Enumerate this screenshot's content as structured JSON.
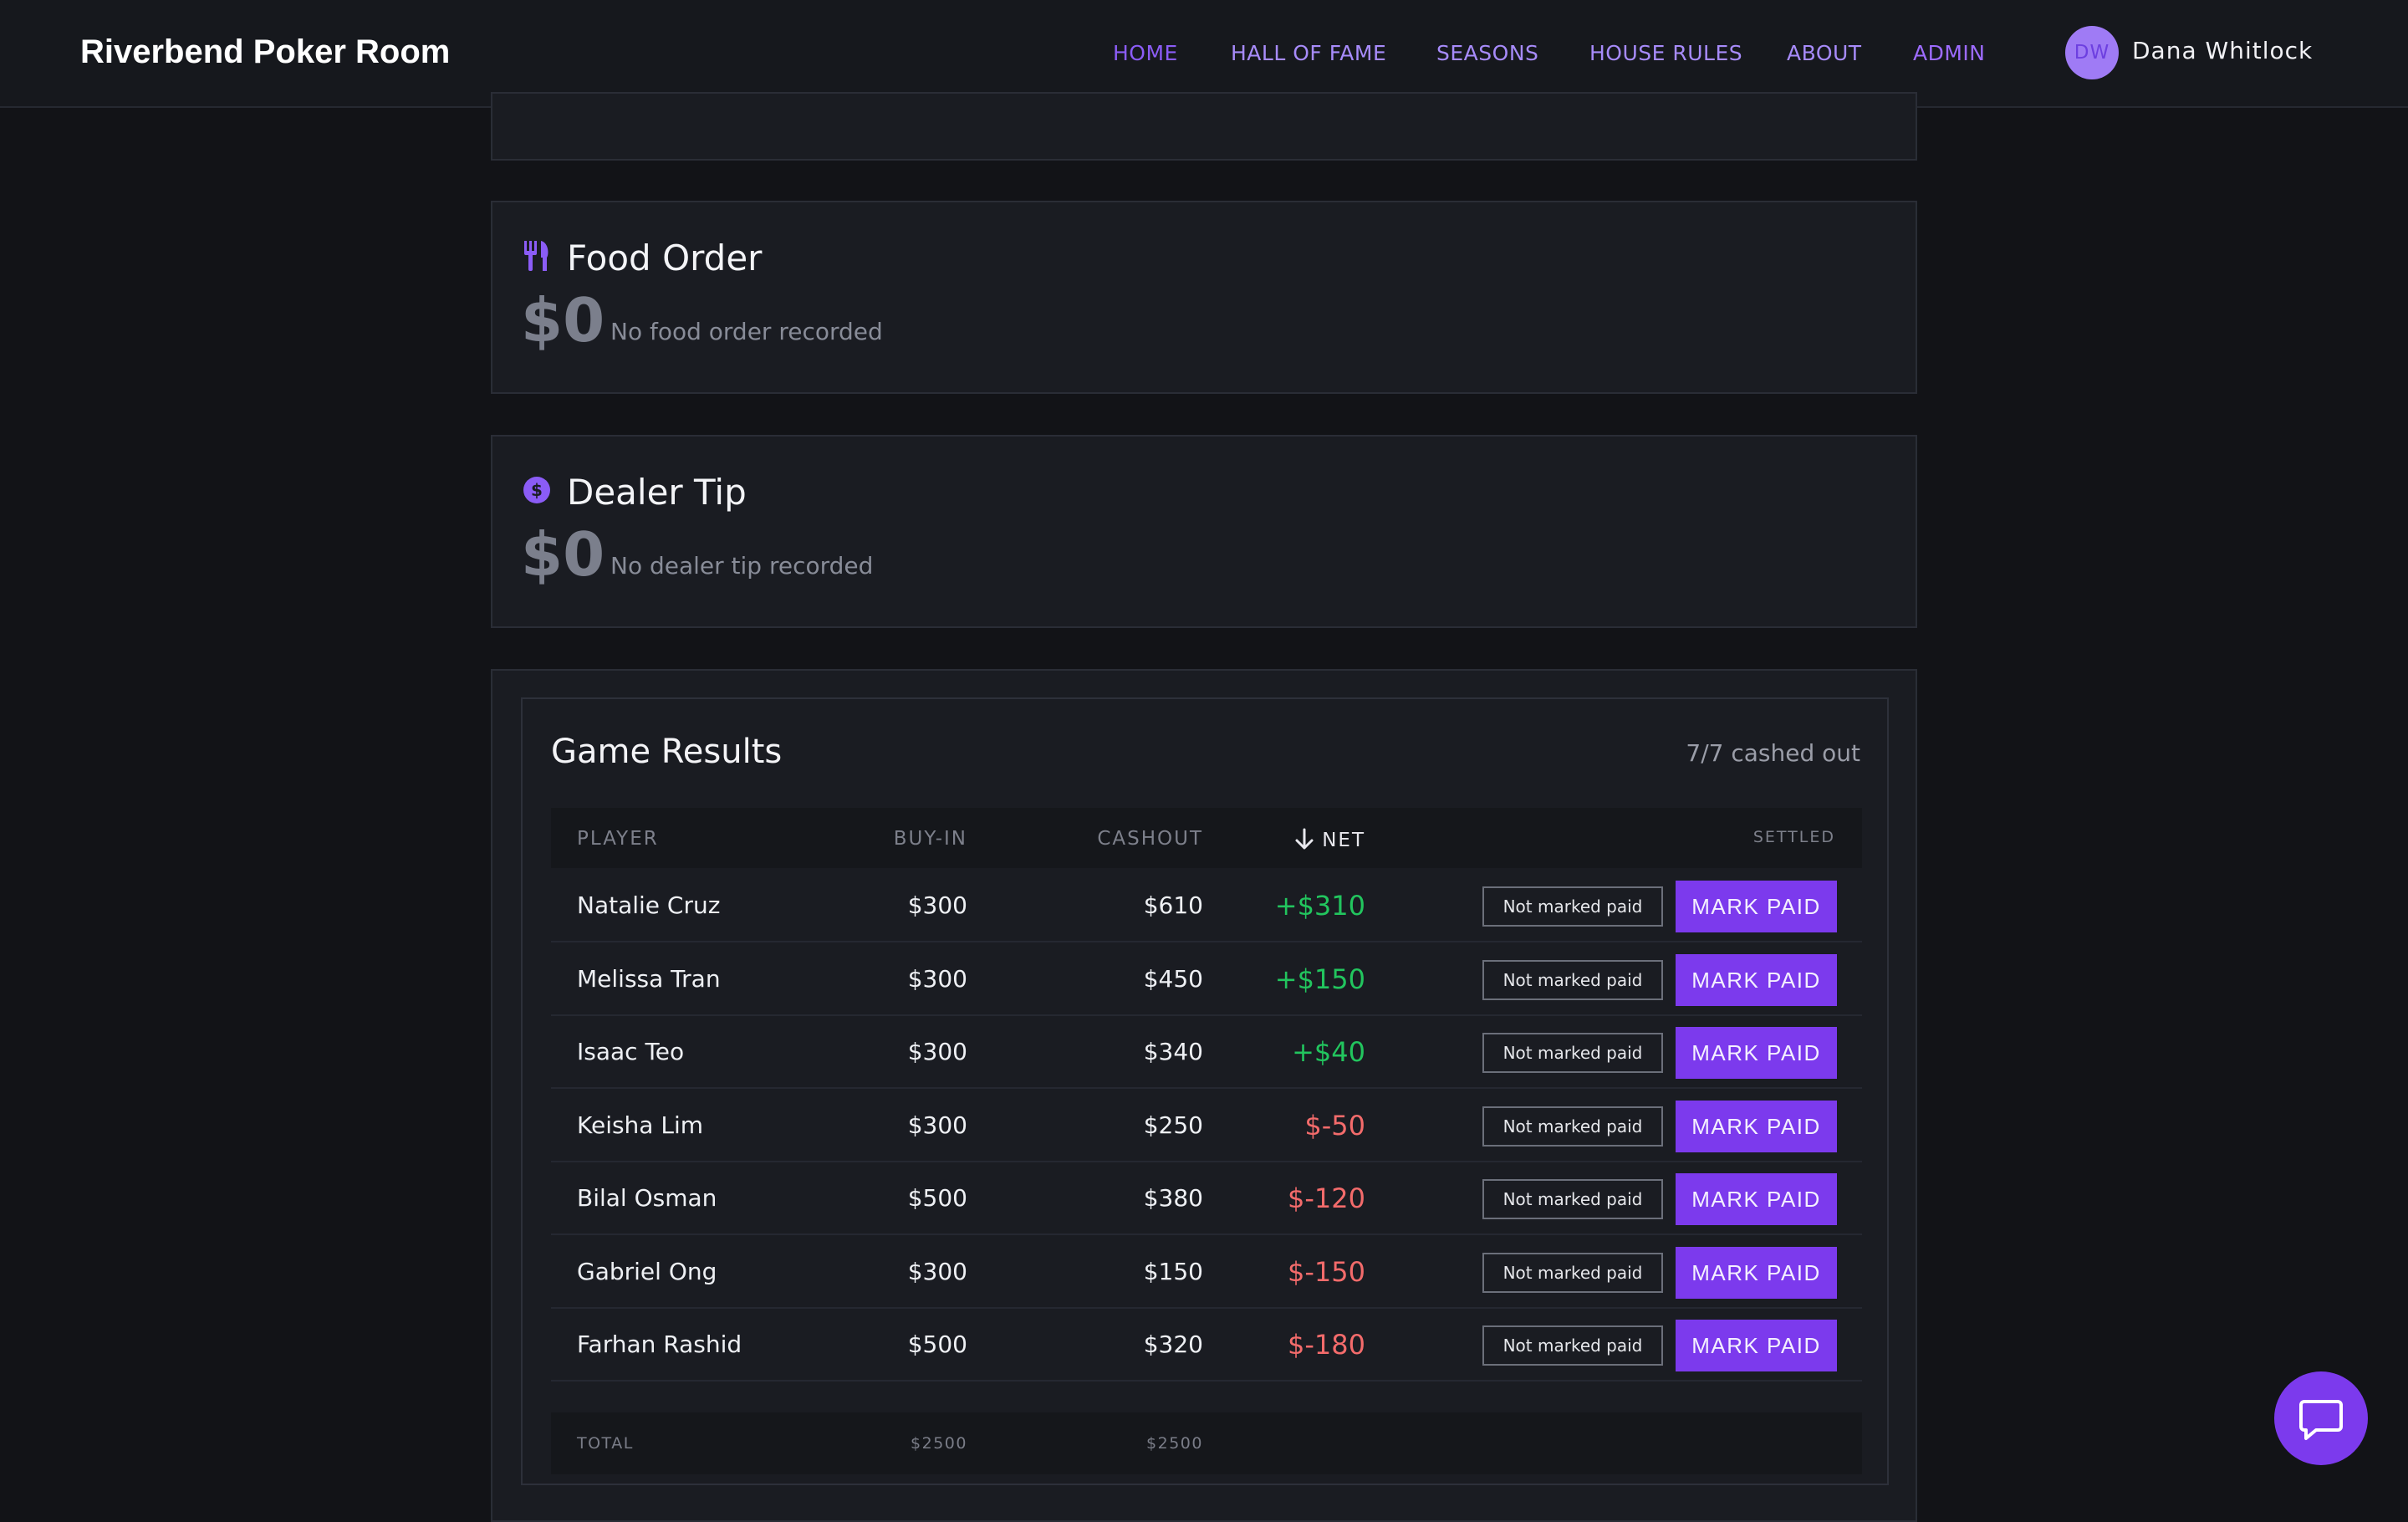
{
  "brand": "Riverbend Poker Room",
  "nav": [
    {
      "label": "HOME",
      "state": "active"
    },
    {
      "label": "HALL OF FAME",
      "state": ""
    },
    {
      "label": "SEASONS",
      "state": ""
    },
    {
      "label": "HOUSE RULES",
      "state": ""
    },
    {
      "label": "ABOUT",
      "state": ""
    },
    {
      "label": "ADMIN",
      "state": "admin"
    }
  ],
  "user": {
    "initials": "DW",
    "name": "Dana Whitlock"
  },
  "food": {
    "icon": "fork-knife-icon",
    "title": "Food Order",
    "amount": "$0",
    "note": "No food order recorded"
  },
  "tip": {
    "icon": "dollar-coin-icon",
    "title": "Dealer Tip",
    "amount": "$0",
    "note": "No dealer tip recorded"
  },
  "results": {
    "title": "Game Results",
    "count": "7/7 cashed out",
    "headers": {
      "player": "PLAYER",
      "buyin": "BUY-IN",
      "cashout": "CASHOUT",
      "net": "NET",
      "settled": "SETTLED"
    },
    "sort_icon": "arrow-down-icon",
    "rows": [
      {
        "player": "Natalie Cruz",
        "buyin": "$300",
        "cashout": "$610",
        "net": "+$310",
        "positive": true,
        "status": "Not marked paid",
        "action": "MARK PAID"
      },
      {
        "player": "Melissa Tran",
        "buyin": "$300",
        "cashout": "$450",
        "net": "+$150",
        "positive": true,
        "status": "Not marked paid",
        "action": "MARK PAID"
      },
      {
        "player": "Isaac Teo",
        "buyin": "$300",
        "cashout": "$340",
        "net": "+$40",
        "positive": true,
        "status": "Not marked paid",
        "action": "MARK PAID"
      },
      {
        "player": "Keisha Lim",
        "buyin": "$300",
        "cashout": "$250",
        "net": "$-50",
        "positive": false,
        "status": "Not marked paid",
        "action": "MARK PAID"
      },
      {
        "player": "Bilal Osman",
        "buyin": "$500",
        "cashout": "$380",
        "net": "$-120",
        "positive": false,
        "status": "Not marked paid",
        "action": "MARK PAID"
      },
      {
        "player": "Gabriel Ong",
        "buyin": "$300",
        "cashout": "$150",
        "net": "$-150",
        "positive": false,
        "status": "Not marked paid",
        "action": "MARK PAID"
      },
      {
        "player": "Farhan Rashid",
        "buyin": "$500",
        "cashout": "$320",
        "net": "$-180",
        "positive": false,
        "status": "Not marked paid",
        "action": "MARK PAID"
      }
    ],
    "total": {
      "label": "TOTAL",
      "buyin": "$2500",
      "cashout": "$2500"
    }
  },
  "chat_icon": "chat-bubble-icon",
  "colors": {
    "accent": "#7c3aed",
    "positive": "#22c55e",
    "negative": "#f36b6b"
  }
}
